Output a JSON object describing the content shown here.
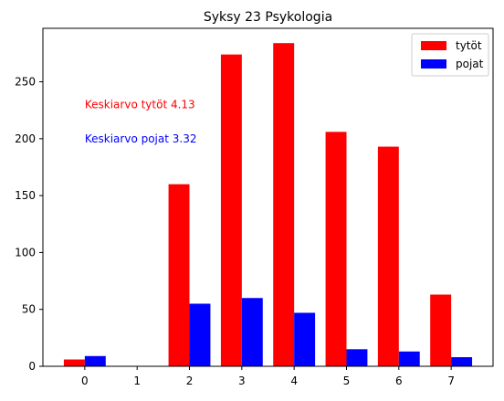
{
  "chart_data": {
    "type": "bar",
    "title": "Syksy 23 Psykologia",
    "xlabel": "",
    "ylabel": "",
    "categories": [
      "0",
      "1",
      "2",
      "3",
      "4",
      "5",
      "6",
      "7"
    ],
    "x_values": [
      0,
      1,
      2,
      3,
      4,
      5,
      6,
      7
    ],
    "xlim": [
      -0.8,
      7.8
    ],
    "ylim": [
      0,
      297
    ],
    "yticks": [
      0,
      50,
      100,
      150,
      200,
      250
    ],
    "grid": false,
    "legend_placement": "top-right",
    "series": [
      {
        "name": "tytöt",
        "color": "#ff0000",
        "values": [
          6,
          0,
          160,
          274,
          284,
          206,
          193,
          63
        ]
      },
      {
        "name": "pojat",
        "color": "#0000ff",
        "values": [
          9,
          0,
          55,
          60,
          47,
          15,
          13,
          8
        ]
      }
    ],
    "annotations": [
      {
        "text": "Keskiarvo tytöt 4.13",
        "color": "#ff0000",
        "x": 0,
        "y": 230
      },
      {
        "text": "Keskiarvo pojat 3.32",
        "color": "#0000ff",
        "x": 0,
        "y": 200
      }
    ]
  }
}
